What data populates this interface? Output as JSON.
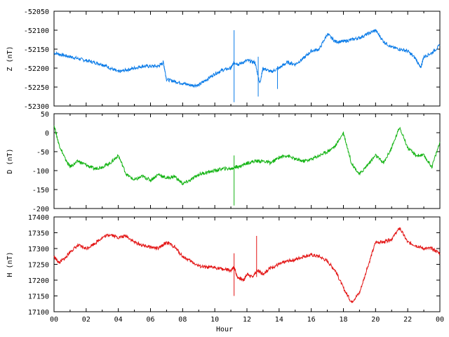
{
  "figure": {
    "xlabel": "Hour",
    "x_tick_labels": [
      "00",
      "02",
      "04",
      "06",
      "08",
      "10",
      "12",
      "14",
      "16",
      "18",
      "20",
      "22",
      "00"
    ]
  },
  "chart_data": [
    {
      "type": "line",
      "ylabel": "Z (nT)",
      "ylim": [
        -52300,
        -52050
      ],
      "y_ticks": [
        -52050,
        -52100,
        -52150,
        -52200,
        -52250,
        -52300
      ],
      "xlim": [
        0,
        24
      ],
      "color": "#0a7be8",
      "series": [
        {
          "x": [
            0.0,
            0.5,
            1.0,
            1.5,
            2.0,
            2.5,
            3.0,
            3.5,
            4.0,
            4.5,
            5.0,
            5.5,
            6.0,
            6.5,
            6.8,
            7.0,
            7.5,
            8.0,
            8.5,
            9.0,
            9.5,
            10.0,
            10.5,
            11.0,
            11.2,
            11.5,
            12.0,
            12.5,
            12.8,
            13.0,
            13.5,
            14.0,
            14.5,
            15.0,
            15.5,
            16.0,
            16.5,
            17.0,
            17.5,
            18.0,
            18.5,
            19.0,
            19.5,
            20.0,
            20.5,
            21.0,
            21.5,
            22.0,
            22.5,
            22.8,
            23.0,
            23.5,
            24.0
          ],
          "y": [
            -52160,
            -52165,
            -52170,
            -52175,
            -52180,
            -52185,
            -52190,
            -52200,
            -52210,
            -52205,
            -52200,
            -52195,
            -52195,
            -52195,
            -52185,
            -52230,
            -52235,
            -52240,
            -52245,
            -52245,
            -52230,
            -52215,
            -52205,
            -52200,
            -52185,
            -52190,
            -52180,
            -52185,
            -52240,
            -52200,
            -52210,
            -52200,
            -52185,
            -52190,
            -52175,
            -52155,
            -52150,
            -52110,
            -52130,
            -52130,
            -52125,
            -52120,
            -52110,
            -52100,
            -52130,
            -52145,
            -52150,
            -52155,
            -52175,
            -52200,
            -52170,
            -52160,
            -52140
          ]
        }
      ],
      "spikes": [
        {
          "x": 11.2,
          "low": -52290,
          "high": -52100
        },
        {
          "x": 12.7,
          "low": -52275,
          "high": -52170
        },
        {
          "x": 13.9,
          "low": -52255,
          "high": -52195
        }
      ]
    },
    {
      "type": "line",
      "ylabel": "D (nT)",
      "ylim": [
        -200,
        50
      ],
      "y_ticks": [
        50,
        0,
        -50,
        -100,
        -150,
        -200
      ],
      "xlim": [
        0,
        24
      ],
      "color": "#14b414",
      "series": [
        {
          "x": [
            0.0,
            0.3,
            0.7,
            1.0,
            1.5,
            2.0,
            2.5,
            3.0,
            3.5,
            4.0,
            4.5,
            5.0,
            5.5,
            6.0,
            6.5,
            7.0,
            7.5,
            8.0,
            8.5,
            9.0,
            9.5,
            10.0,
            10.5,
            11.0,
            11.3,
            11.5,
            12.0,
            12.5,
            13.0,
            13.5,
            14.0,
            14.5,
            15.0,
            15.5,
            16.0,
            16.5,
            17.0,
            17.5,
            18.0,
            18.5,
            19.0,
            19.5,
            20.0,
            20.5,
            21.0,
            21.5,
            22.0,
            22.5,
            23.0,
            23.5,
            24.0
          ],
          "y": [
            20,
            -30,
            -70,
            -90,
            -75,
            -85,
            -95,
            -90,
            -80,
            -60,
            -110,
            -125,
            -115,
            -125,
            -110,
            -120,
            -115,
            -135,
            -125,
            -110,
            -105,
            -100,
            -95,
            -95,
            -90,
            -90,
            -80,
            -75,
            -75,
            -80,
            -65,
            -60,
            -70,
            -75,
            -70,
            -60,
            -50,
            -35,
            0,
            -80,
            -110,
            -85,
            -60,
            -80,
            -40,
            15,
            -40,
            -60,
            -60,
            -90,
            -25
          ]
        }
      ],
      "spikes": [
        {
          "x": 11.2,
          "low": -192,
          "high": -60
        }
      ]
    },
    {
      "type": "line",
      "ylabel": "H (nT)",
      "ylim": [
        17100,
        17400
      ],
      "y_ticks": [
        17400,
        17350,
        17300,
        17250,
        17200,
        17150,
        17100
      ],
      "xlim": [
        0,
        24
      ],
      "color": "#e31414",
      "series": [
        {
          "x": [
            0.0,
            0.3,
            0.7,
            1.0,
            1.5,
            2.0,
            2.5,
            3.0,
            3.5,
            4.0,
            4.5,
            5.0,
            5.5,
            6.0,
            6.5,
            7.0,
            7.5,
            8.0,
            8.5,
            9.0,
            9.5,
            10.0,
            10.5,
            11.0,
            11.2,
            11.4,
            11.8,
            12.0,
            12.3,
            12.7,
            13.0,
            13.5,
            14.0,
            14.5,
            15.0,
            15.5,
            16.0,
            16.5,
            17.0,
            17.5,
            18.0,
            18.5,
            19.0,
            19.5,
            20.0,
            20.5,
            21.0,
            21.5,
            22.0,
            22.5,
            23.0,
            23.5,
            24.0
          ],
          "y": [
            17275,
            17255,
            17270,
            17290,
            17310,
            17300,
            17315,
            17335,
            17345,
            17335,
            17340,
            17320,
            17310,
            17305,
            17300,
            17320,
            17305,
            17275,
            17260,
            17245,
            17240,
            17240,
            17235,
            17230,
            17240,
            17210,
            17200,
            17220,
            17210,
            17230,
            17220,
            17240,
            17250,
            17260,
            17265,
            17275,
            17280,
            17275,
            17260,
            17230,
            17175,
            17130,
            17160,
            17240,
            17320,
            17320,
            17330,
            17365,
            17320,
            17310,
            17300,
            17300,
            17285
          ]
        }
      ],
      "spikes": [
        {
          "x": 11.2,
          "low": 17150,
          "high": 17285
        },
        {
          "x": 12.6,
          "low": 17210,
          "high": 17340
        }
      ]
    }
  ]
}
